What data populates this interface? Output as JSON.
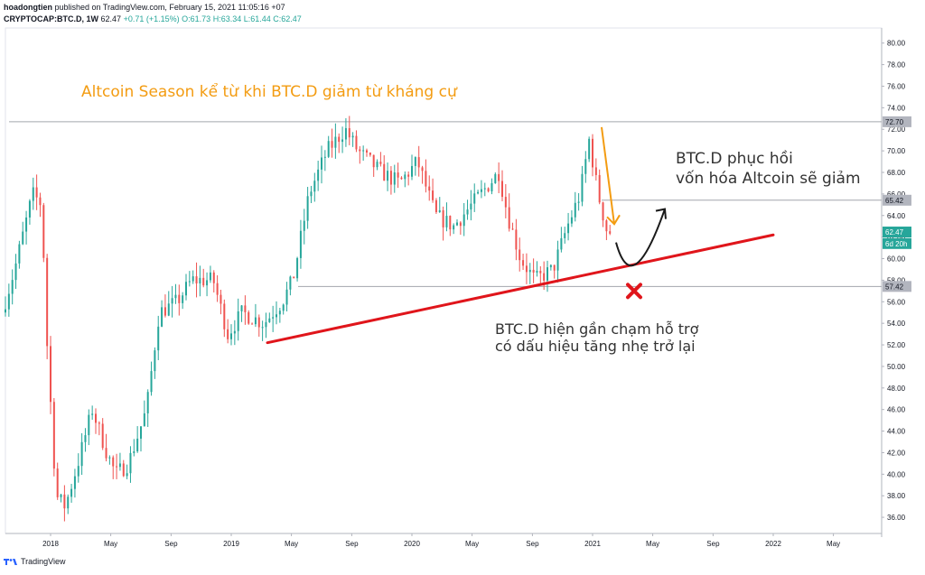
{
  "header": {
    "author": "hoadongtien",
    "published": "published on TradingView.com, February 15, 2021 11:05:16 +07",
    "symbol": "CRYPTOCAP:BTC.D, 1W",
    "last": "62.47",
    "change": "+0.71 (+1.15%)",
    "ohlc_o": "O:61.73",
    "ohlc_h": "H:63.34",
    "ohlc_l": "L:61.44",
    "ohlc_c": "C:62.47"
  },
  "footer": {
    "brand": "TradingView",
    "logo_icon": "tradingview-logo-icon"
  },
  "colors": {
    "up": "#26a69a",
    "down": "#ef5350",
    "trend": "#e0151b",
    "arrow_orange": "#f39c12",
    "annot_orange": "#f39c12",
    "annot_gray": "#333333",
    "hline": "#a3a6ad"
  },
  "chart_data": {
    "type": "candlestick",
    "x_ticks": [
      {
        "label": "2018",
        "t": 2018.0
      },
      {
        "label": "May",
        "t": 2018.333
      },
      {
        "label": "Sep",
        "t": 2018.667
      },
      {
        "label": "2019",
        "t": 2019.0
      },
      {
        "label": "May",
        "t": 2019.333
      },
      {
        "label": "Sep",
        "t": 2019.667
      },
      {
        "label": "2020",
        "t": 2020.0
      },
      {
        "label": "May",
        "t": 2020.333
      },
      {
        "label": "Sep",
        "t": 2020.667
      },
      {
        "label": "2021",
        "t": 2021.0
      },
      {
        "label": "May",
        "t": 2021.333
      },
      {
        "label": "Sep",
        "t": 2021.667
      },
      {
        "label": "2022",
        "t": 2022.0
      },
      {
        "label": "May",
        "t": 2022.333
      }
    ],
    "x_range": [
      2017.75,
      2022.6
    ],
    "y_range": [
      34.5,
      81.4
    ],
    "y_ticks": [
      80,
      78,
      76,
      74,
      72,
      70,
      68,
      66,
      64,
      62,
      60,
      58,
      56,
      54,
      52,
      50,
      48,
      46,
      44,
      42,
      40,
      38,
      36
    ],
    "price_labels": [
      {
        "text": "72.70",
        "value": 72.7,
        "style": "gray"
      },
      {
        "text": "65.42",
        "value": 65.42,
        "style": "gray"
      },
      {
        "text": "62.47",
        "value": 62.47,
        "style": "green"
      },
      {
        "text": "6d 20h",
        "value": 61.4,
        "style": "green"
      },
      {
        "text": "57.42",
        "value": 57.42,
        "style": "gray"
      }
    ],
    "horizontal_lines": [
      {
        "value": 72.7,
        "from": 2017.77
      },
      {
        "value": 65.42,
        "from": 2021.05
      },
      {
        "value": 57.42,
        "from": 2019.37
      }
    ],
    "trend_line": {
      "from": [
        2019.2,
        52.2
      ],
      "to": [
        2022.0,
        62.2
      ]
    },
    "anchors": [
      [
        2017.75,
        55
      ],
      [
        2017.82,
        59
      ],
      [
        2017.92,
        66
      ],
      [
        2017.97,
        65
      ],
      [
        2018.0,
        52
      ],
      [
        2018.05,
        38
      ],
      [
        2018.1,
        37
      ],
      [
        2018.17,
        41
      ],
      [
        2018.25,
        46
      ],
      [
        2018.33,
        42
      ],
      [
        2018.38,
        40
      ],
      [
        2018.45,
        41
      ],
      [
        2018.55,
        46
      ],
      [
        2018.62,
        55
      ],
      [
        2018.72,
        56
      ],
      [
        2018.8,
        58
      ],
      [
        2018.92,
        58
      ],
      [
        2019.0,
        53
      ],
      [
        2019.08,
        55
      ],
      [
        2019.2,
        54
      ],
      [
        2019.3,
        56
      ],
      [
        2019.36,
        58
      ],
      [
        2019.45,
        66
      ],
      [
        2019.55,
        70
      ],
      [
        2019.65,
        72
      ],
      [
        2019.72,
        70
      ],
      [
        2019.85,
        68
      ],
      [
        2019.95,
        67
      ],
      [
        2020.05,
        69
      ],
      [
        2020.15,
        64
      ],
      [
        2020.25,
        63
      ],
      [
        2020.4,
        66
      ],
      [
        2020.5,
        68
      ],
      [
        2020.55,
        64
      ],
      [
        2020.62,
        60
      ],
      [
        2020.7,
        58
      ],
      [
        2020.8,
        59
      ],
      [
        2020.88,
        63
      ],
      [
        2020.95,
        66
      ],
      [
        2021.0,
        71
      ],
      [
        2021.05,
        66
      ],
      [
        2021.1,
        62.47
      ]
    ],
    "annotations": [
      {
        "text": "Altcoin Season kể từ khi BTC.D giảm từ kháng cự",
        "color": "orange"
      },
      {
        "lines": [
          "BTC.D phục hồi",
          "vốn hóa Altcoin sẽ giảm"
        ],
        "color": "gray"
      },
      {
        "lines": [
          "BTC.D hiện gần chạm hỗ trợ",
          "có dấu hiệu tăng nhẹ trở lại"
        ],
        "color": "gray"
      }
    ]
  }
}
